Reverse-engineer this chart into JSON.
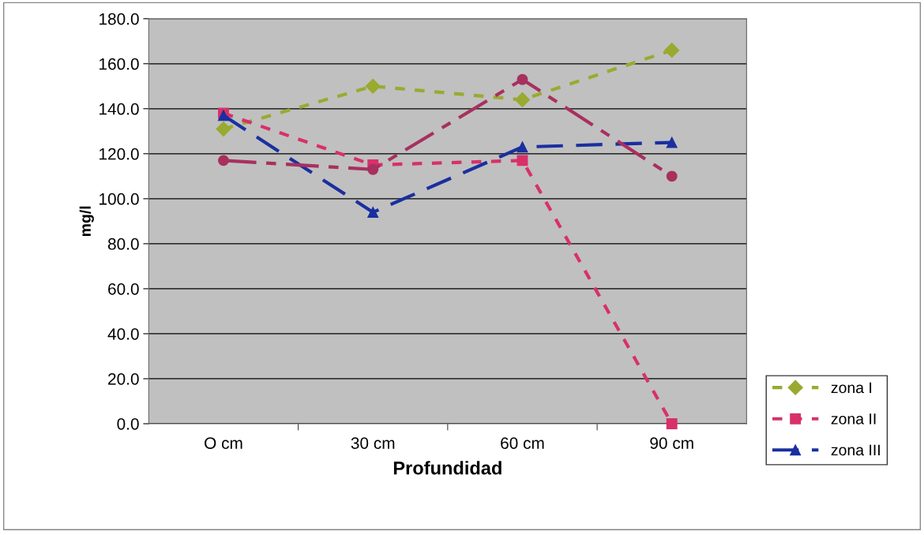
{
  "chart_data": {
    "type": "line",
    "xlabel": "Profundidad",
    "ylabel": "mg/l",
    "categories": [
      "O cm",
      "30 cm",
      "60 cm",
      "90 cm"
    ],
    "ylim": [
      0,
      180
    ],
    "yticks": [
      {
        "value": 0,
        "label": "0.0"
      },
      {
        "value": 20,
        "label": "20.0"
      },
      {
        "value": 40,
        "label": "40.0"
      },
      {
        "value": 60,
        "label": "60.0"
      },
      {
        "value": 80,
        "label": "80.0"
      },
      {
        "value": 100,
        "label": "100.0"
      },
      {
        "value": 120,
        "label": "120.0"
      },
      {
        "value": 140,
        "label": "140.0"
      },
      {
        "value": 160,
        "label": "160.0"
      },
      {
        "value": 180,
        "label": "180.0"
      }
    ],
    "grid": "y",
    "legend": "bottom right",
    "series": [
      {
        "name": "zona I",
        "color": "#9aaa30",
        "marker": "diamond",
        "line_style": "dotted",
        "values": [
          131,
          150,
          144,
          166
        ]
      },
      {
        "name": "zona II",
        "color": "#d8306a",
        "marker": "square",
        "line_style": "dotted",
        "values": [
          138,
          115,
          117,
          0
        ]
      },
      {
        "name": "zona III",
        "color": "#1a2fa0",
        "marker": "triangle",
        "line_style": "dashed",
        "values": [
          137,
          94,
          123,
          125
        ]
      },
      {
        "color": "#a8305e",
        "marker": "circle",
        "line_style": "dashdot",
        "values": [
          117,
          113,
          153,
          110
        ]
      }
    ]
  }
}
